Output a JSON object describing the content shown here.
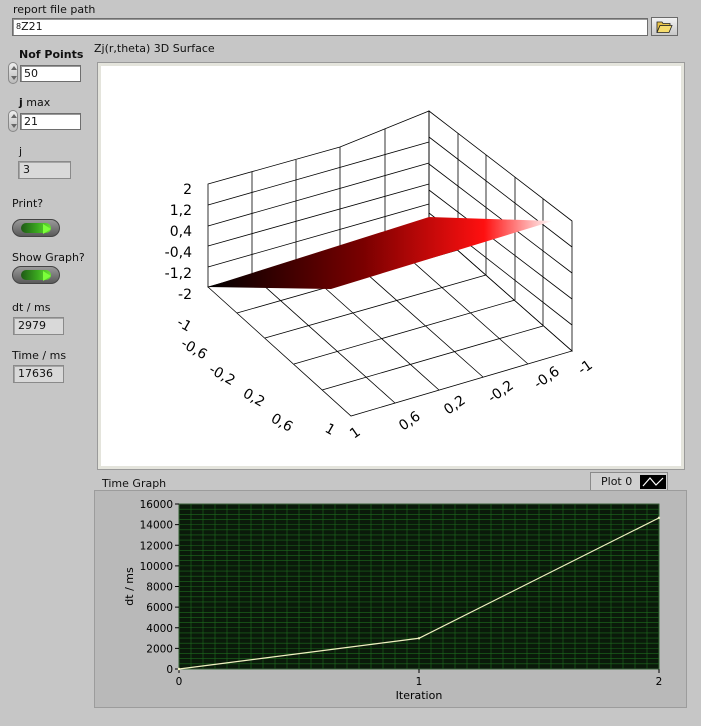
{
  "report_path": {
    "label": "report file path",
    "value": "Z21",
    "prefix_glyph": "8",
    "browse_icon": "folder-open-icon"
  },
  "controls": {
    "nof_points": {
      "label": "Nof Points",
      "value": "50"
    },
    "j_max": {
      "label_bold": "j",
      "label_rest": " max",
      "value": "21"
    },
    "j": {
      "label": "j",
      "value": "3"
    },
    "print": {
      "label": "Print?"
    },
    "show_graph": {
      "label": "Show Graph?"
    },
    "dt": {
      "label": "dt / ms",
      "value": "2979"
    },
    "time": {
      "label": "Time / ms",
      "value": "17636"
    }
  },
  "surface": {
    "title": "Zj(r,theta) 3D Surface",
    "z_ticks": [
      "2",
      "1,2",
      "0,4",
      "-0,4",
      "-1,2",
      "-2"
    ],
    "x_ticks": [
      "-1",
      "-0,6",
      "-0,2",
      "0,2",
      "0,6",
      "1"
    ],
    "y_ticks": [
      "1",
      "0,6",
      "0,2",
      "-0,2",
      "-0,6",
      "-1"
    ],
    "colors": {
      "low": "#000000",
      "high": "#ff0000",
      "edge": "#ffffff"
    }
  },
  "time_graph": {
    "title": "Time Graph",
    "legend": "Plot 0",
    "colors": {
      "background": "#0a1a0a",
      "grid": "#1e6a1e",
      "line": "#f0f0c0"
    }
  },
  "chart_data": {
    "type": "line",
    "title": "Time Graph",
    "xlabel": "Iteration",
    "ylabel": "dt / ms",
    "x": [
      0,
      1,
      2
    ],
    "series": [
      {
        "name": "Plot 0",
        "values": [
          0,
          2979,
          14657
        ]
      }
    ],
    "xlim": [
      0,
      2
    ],
    "ylim": [
      0,
      16000
    ],
    "x_ticks": [
      0,
      1,
      2
    ],
    "y_ticks": [
      0,
      2000,
      4000,
      6000,
      8000,
      10000,
      12000,
      14000,
      16000
    ],
    "grid": true,
    "legend_position": "top-right"
  }
}
